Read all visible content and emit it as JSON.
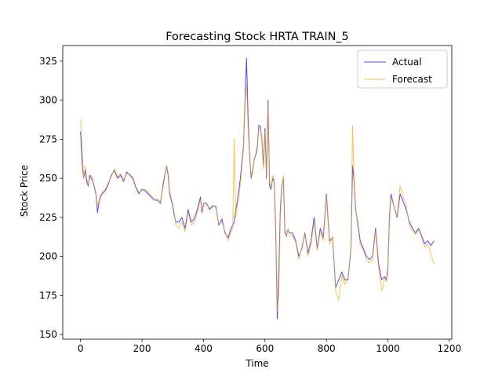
{
  "chart_data": {
    "type": "line",
    "title": "Forecasting Stock HRTA TRAIN_5",
    "xlabel": "Time",
    "ylabel": "Stock Price",
    "xlim": [
      -58,
      1208
    ],
    "ylim": [
      147,
      335
    ],
    "xticks": [
      0,
      200,
      400,
      600,
      800,
      1000,
      1200
    ],
    "yticks": [
      150,
      175,
      200,
      225,
      250,
      275,
      300,
      325
    ],
    "grid": false,
    "legend_position": "top-right",
    "series": [
      {
        "name": "Actual",
        "color": "#0000ff",
        "x": [
          0,
          5,
          10,
          15,
          20,
          25,
          30,
          35,
          40,
          45,
          50,
          55,
          60,
          65,
          70,
          80,
          90,
          100,
          110,
          120,
          130,
          140,
          150,
          160,
          170,
          180,
          190,
          200,
          210,
          220,
          230,
          240,
          250,
          260,
          270,
          280,
          285,
          290,
          300,
          305,
          310,
          320,
          330,
          340,
          350,
          360,
          370,
          380,
          390,
          395,
          400,
          410,
          420,
          430,
          440,
          450,
          460,
          470,
          480,
          490,
          500,
          505,
          510,
          520,
          530,
          535,
          540,
          545,
          550,
          555,
          560,
          565,
          570,
          575,
          580,
          585,
          590,
          595,
          600,
          605,
          610,
          615,
          620,
          625,
          630,
          635,
          640,
          645,
          650,
          655,
          660,
          665,
          670,
          675,
          680,
          690,
          700,
          710,
          720,
          730,
          740,
          750,
          760,
          770,
          780,
          790,
          800,
          810,
          820,
          830,
          840,
          850,
          860,
          870,
          880,
          885,
          890,
          895,
          900,
          910,
          920,
          930,
          940,
          950,
          960,
          970,
          980,
          990,
          995,
          1000,
          1005,
          1010,
          1020,
          1030,
          1040,
          1050,
          1060,
          1070,
          1080,
          1090,
          1100,
          1110,
          1120,
          1130,
          1140,
          1150
        ],
        "y": [
          280,
          260,
          250,
          255,
          248,
          245,
          252,
          250,
          248,
          244,
          240,
          228,
          235,
          238,
          240,
          242,
          246,
          252,
          255,
          250,
          252,
          248,
          254,
          252,
          250,
          244,
          240,
          243,
          242,
          240,
          238,
          236,
          236,
          234,
          248,
          258,
          252,
          240,
          232,
          226,
          222,
          222,
          225,
          218,
          230,
          222,
          224,
          230,
          238,
          228,
          234,
          234,
          230,
          232,
          232,
          220,
          224,
          215,
          212,
          218,
          222,
          230,
          235,
          250,
          270,
          300,
          327,
          290,
          265,
          250,
          255,
          262,
          265,
          270,
          284,
          283,
          275,
          258,
          282,
          250,
          300,
          245,
          243,
          250,
          248,
          218,
          160,
          190,
          230,
          245,
          250,
          215,
          213,
          217,
          215,
          215,
          210,
          200,
          205,
          215,
          202,
          210,
          225,
          205,
          218,
          212,
          240,
          210,
          212,
          180,
          185,
          190,
          185,
          185,
          205,
          258,
          248,
          230,
          224,
          210,
          205,
          200,
          198,
          200,
          218,
          195,
          185,
          187,
          185,
          192,
          225,
          240,
          232,
          225,
          240,
          235,
          230,
          222,
          218,
          215,
          218,
          213,
          208,
          210,
          207,
          210
        ]
      },
      {
        "name": "Forecast",
        "color": "#ffa500",
        "x": [
          0,
          5,
          10,
          15,
          20,
          25,
          30,
          35,
          40,
          45,
          50,
          55,
          60,
          65,
          70,
          80,
          90,
          100,
          110,
          120,
          130,
          140,
          150,
          160,
          170,
          180,
          190,
          200,
          210,
          220,
          230,
          240,
          250,
          260,
          270,
          280,
          285,
          290,
          300,
          305,
          310,
          320,
          330,
          340,
          350,
          360,
          370,
          380,
          390,
          395,
          400,
          410,
          420,
          430,
          440,
          450,
          460,
          470,
          480,
          490,
          495,
          500,
          505,
          510,
          520,
          530,
          535,
          540,
          545,
          550,
          555,
          560,
          565,
          570,
          575,
          580,
          585,
          590,
          595,
          600,
          605,
          610,
          615,
          620,
          625,
          630,
          635,
          640,
          645,
          650,
          655,
          660,
          665,
          670,
          675,
          680,
          690,
          700,
          710,
          720,
          730,
          740,
          750,
          760,
          770,
          780,
          790,
          800,
          810,
          820,
          830,
          840,
          850,
          860,
          870,
          880,
          885,
          890,
          895,
          900,
          910,
          920,
          930,
          940,
          950,
          960,
          970,
          980,
          990,
          995,
          1000,
          1005,
          1010,
          1020,
          1030,
          1040,
          1050,
          1060,
          1070,
          1080,
          1090,
          1100,
          1110,
          1120,
          1130,
          1140,
          1150
        ],
        "y": [
          288,
          270,
          250,
          258,
          250,
          246,
          250,
          252,
          249,
          245,
          241,
          232,
          236,
          239,
          241,
          243,
          247,
          251,
          256,
          251,
          253,
          249,
          253,
          253,
          251,
          245,
          241,
          242,
          243,
          241,
          239,
          237,
          237,
          235,
          246,
          258,
          254,
          242,
          233,
          228,
          220,
          218,
          222,
          216,
          228,
          220,
          222,
          228,
          236,
          230,
          232,
          233,
          231,
          233,
          231,
          221,
          222,
          216,
          210,
          216,
          218,
          275,
          225,
          232,
          246,
          268,
          298,
          310,
          282,
          263,
          251,
          253,
          263,
          264,
          268,
          282,
          282,
          274,
          256,
          280,
          252,
          296,
          248,
          244,
          252,
          250,
          220,
          165,
          175,
          225,
          243,
          252,
          218,
          212,
          218,
          214,
          213,
          209,
          198,
          206,
          214,
          200,
          208,
          222,
          204,
          216,
          210,
          238,
          208,
          213,
          178,
          172,
          188,
          182,
          186,
          203,
          284,
          250,
          232,
          222,
          208,
          204,
          198,
          196,
          198,
          216,
          192,
          178,
          186,
          184,
          190,
          222,
          238,
          232,
          226,
          245,
          238,
          232,
          220,
          216,
          214,
          217,
          212,
          206,
          208,
          202,
          195
        ]
      }
    ]
  }
}
